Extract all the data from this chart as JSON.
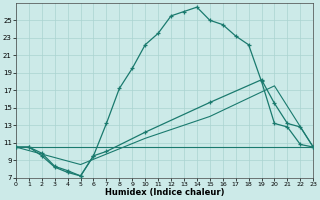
{
  "bg_color": "#cceae8",
  "grid_color": "#aad4d0",
  "line_color": "#1a7a6e",
  "xlabel": "Humidex (Indice chaleur)",
  "curve1_x": [
    0,
    1,
    2,
    3,
    4,
    5,
    6,
    7,
    8,
    9,
    10,
    11,
    12,
    13,
    14,
    15,
    16,
    17,
    18,
    19,
    20,
    21,
    22,
    23
  ],
  "curve1_y": [
    10.5,
    10.5,
    9.5,
    8.2,
    7.6,
    7.2,
    9.5,
    13.2,
    17.2,
    19.5,
    22.2,
    23.5,
    25.5,
    26.0,
    26.5,
    25.0,
    24.5,
    23.2,
    22.2,
    18.0,
    13.2,
    12.8,
    10.8,
    10.5
  ],
  "curve2_x": [
    0,
    1,
    2,
    3,
    4,
    5,
    6,
    7,
    10,
    15,
    19,
    20,
    21,
    22,
    23
  ],
  "curve2_y": [
    10.5,
    10.5,
    9.8,
    8.3,
    7.8,
    7.2,
    9.5,
    10.0,
    12.2,
    15.6,
    18.2,
    15.5,
    13.2,
    12.8,
    10.5
  ],
  "curve3_x": [
    0,
    5,
    10,
    15,
    20,
    23
  ],
  "curve3_y": [
    10.5,
    8.5,
    11.5,
    14.0,
    17.5,
    10.5
  ],
  "curve4_x": [
    0,
    23
  ],
  "curve4_y": [
    10.5,
    10.5
  ],
  "xmin": 0,
  "xmax": 23,
  "ymin": 7,
  "ymax": 27,
  "xticks": [
    0,
    1,
    2,
    3,
    4,
    5,
    6,
    7,
    8,
    9,
    10,
    11,
    12,
    13,
    14,
    15,
    16,
    17,
    18,
    19,
    20,
    21,
    22,
    23
  ],
  "yticks": [
    7,
    9,
    11,
    13,
    15,
    17,
    19,
    21,
    23,
    25
  ]
}
